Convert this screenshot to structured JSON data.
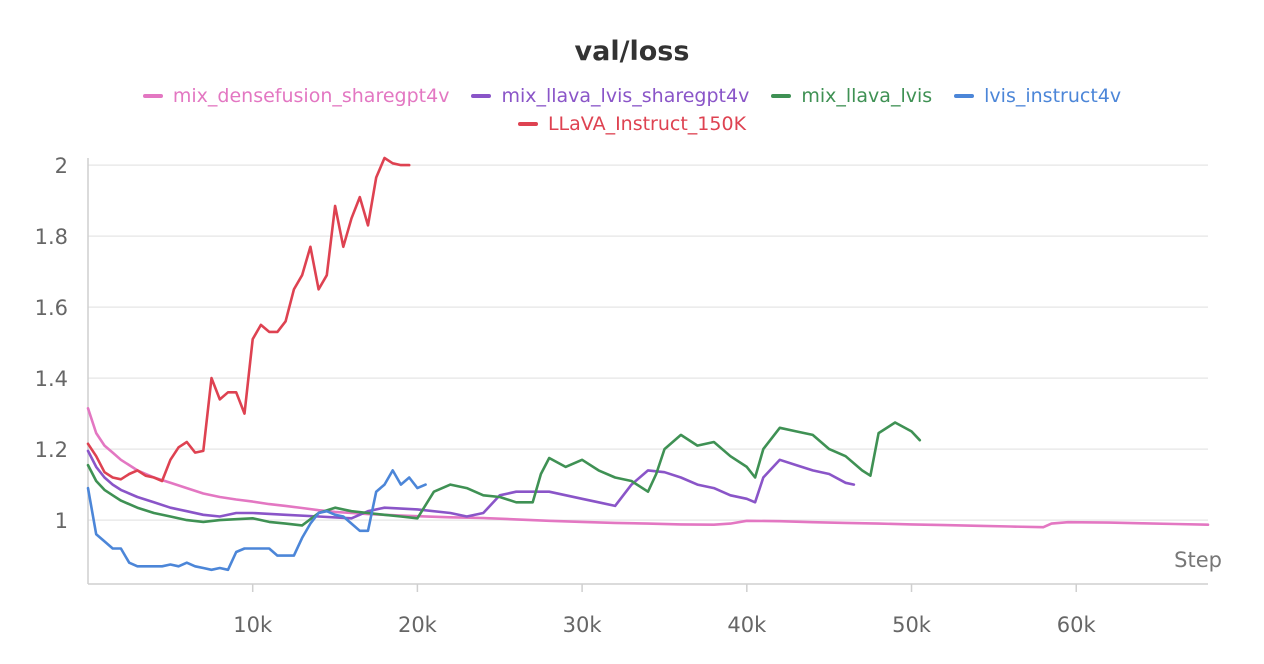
{
  "chart_data": {
    "type": "line",
    "title": "val/loss",
    "xlabel": "Step",
    "ylabel": "",
    "xlim": [
      0,
      68000
    ],
    "ylim": [
      0.82,
      2.02
    ],
    "x_ticks": [
      10000,
      20000,
      30000,
      40000,
      50000,
      60000
    ],
    "x_tick_labels": [
      "10k",
      "20k",
      "30k",
      "40k",
      "50k",
      "60k"
    ],
    "y_ticks": [
      1.0,
      1.2,
      1.4,
      1.6,
      1.8,
      2.0
    ],
    "y_tick_labels": [
      "1",
      "1.2",
      "1.4",
      "1.6",
      "1.8",
      "2"
    ],
    "grid": true,
    "legend_position": "top",
    "series": [
      {
        "name": "mix_densefusion_sharegpt4v",
        "color": "#e377c2",
        "x": [
          0,
          500,
          1000,
          1500,
          2000,
          3000,
          4000,
          5000,
          6000,
          7000,
          8000,
          9000,
          10000,
          11000,
          12000,
          13000,
          14000,
          15000,
          16000,
          17000,
          18000,
          19000,
          20000,
          22000,
          24000,
          26000,
          28000,
          30000,
          32000,
          34000,
          36000,
          38000,
          39000,
          40000,
          42000,
          44000,
          46000,
          48000,
          50000,
          52000,
          54000,
          56000,
          58000,
          58500,
          59500,
          62000,
          64000,
          66000,
          68000
        ],
        "values": [
          1.315,
          1.245,
          1.21,
          1.19,
          1.17,
          1.14,
          1.12,
          1.105,
          1.09,
          1.075,
          1.065,
          1.058,
          1.052,
          1.045,
          1.04,
          1.034,
          1.028,
          1.023,
          1.02,
          1.017,
          1.015,
          1.013,
          1.011,
          1.008,
          1.006,
          1.002,
          0.998,
          0.995,
          0.992,
          0.99,
          0.988,
          0.987,
          0.99,
          0.998,
          0.997,
          0.994,
          0.992,
          0.99,
          0.988,
          0.986,
          0.984,
          0.982,
          0.98,
          0.99,
          0.994,
          0.993,
          0.991,
          0.989,
          0.987
        ]
      },
      {
        "name": "mix_llava_lvis_sharegpt4v",
        "color": "#8a55c8",
        "x": [
          0,
          500,
          1000,
          1500,
          2000,
          3000,
          4000,
          5000,
          6000,
          7000,
          8000,
          9000,
          10000,
          12000,
          14000,
          16000,
          17000,
          18000,
          20000,
          22000,
          23000,
          24000,
          25000,
          26000,
          28000,
          30000,
          31000,
          32000,
          33000,
          34000,
          35000,
          36000,
          37000,
          38000,
          39000,
          40000,
          40500,
          41000,
          42000,
          43000,
          44000,
          45000,
          46000,
          46500
        ],
        "values": [
          1.195,
          1.15,
          1.12,
          1.1,
          1.085,
          1.065,
          1.05,
          1.035,
          1.025,
          1.015,
          1.01,
          1.02,
          1.02,
          1.015,
          1.01,
          1.005,
          1.025,
          1.035,
          1.03,
          1.02,
          1.01,
          1.02,
          1.07,
          1.08,
          1.08,
          1.06,
          1.05,
          1.04,
          1.1,
          1.14,
          1.135,
          1.12,
          1.1,
          1.09,
          1.07,
          1.06,
          1.05,
          1.12,
          1.17,
          1.155,
          1.14,
          1.13,
          1.105,
          1.1
        ]
      },
      {
        "name": "mix_llava_lvis",
        "color": "#3f9154",
        "x": [
          0,
          500,
          1000,
          1500,
          2000,
          3000,
          4000,
          5000,
          6000,
          7000,
          8000,
          10000,
          11000,
          12000,
          13000,
          14000,
          15000,
          16000,
          17000,
          18000,
          19000,
          20000,
          21000,
          22000,
          23000,
          24000,
          25000,
          26000,
          27000,
          27500,
          28000,
          29000,
          30000,
          31000,
          32000,
          33000,
          34000,
          34500,
          35000,
          36000,
          37000,
          38000,
          39000,
          40000,
          40500,
          41000,
          42000,
          43000,
          44000,
          45000,
          46000,
          47000,
          47500,
          48000,
          49000,
          50000,
          50500
        ],
        "values": [
          1.155,
          1.11,
          1.085,
          1.07,
          1.055,
          1.035,
          1.02,
          1.01,
          1.0,
          0.995,
          1.0,
          1.005,
          0.995,
          0.99,
          0.985,
          1.02,
          1.035,
          1.025,
          1.02,
          1.015,
          1.01,
          1.005,
          1.08,
          1.1,
          1.09,
          1.07,
          1.065,
          1.05,
          1.05,
          1.13,
          1.175,
          1.15,
          1.17,
          1.14,
          1.12,
          1.11,
          1.08,
          1.13,
          1.2,
          1.24,
          1.21,
          1.22,
          1.18,
          1.15,
          1.12,
          1.2,
          1.26,
          1.25,
          1.24,
          1.2,
          1.18,
          1.14,
          1.125,
          1.245,
          1.275,
          1.25,
          1.225
        ]
      },
      {
        "name": "lvis_instruct4v",
        "color": "#4c86d8",
        "x": [
          0,
          500,
          1000,
          1500,
          2000,
          2500,
          3000,
          3500,
          4000,
          4500,
          5000,
          5500,
          6000,
          6500,
          7000,
          7500,
          8000,
          8500,
          9000,
          9500,
          10000,
          10500,
          11000,
          11500,
          12000,
          12500,
          13000,
          13500,
          14000,
          14500,
          15000,
          15500,
          16000,
          16500,
          17000,
          17500,
          18000,
          18500,
          19000,
          19500,
          20000,
          20500
        ],
        "values": [
          1.09,
          0.96,
          0.94,
          0.92,
          0.92,
          0.88,
          0.87,
          0.87,
          0.87,
          0.87,
          0.875,
          0.87,
          0.88,
          0.87,
          0.865,
          0.86,
          0.865,
          0.86,
          0.91,
          0.92,
          0.92,
          0.92,
          0.92,
          0.9,
          0.9,
          0.9,
          0.95,
          0.99,
          1.02,
          1.025,
          1.015,
          1.01,
          0.99,
          0.97,
          0.97,
          1.08,
          1.1,
          1.14,
          1.1,
          1.12,
          1.09,
          1.1
        ]
      },
      {
        "name": "LLaVA_Instruct_150K",
        "color": "#de4251",
        "x": [
          0,
          500,
          1000,
          1500,
          2000,
          2500,
          3000,
          3500,
          4000,
          4500,
          5000,
          5500,
          6000,
          6500,
          7000,
          7500,
          8000,
          8500,
          9000,
          9500,
          10000,
          10500,
          11000,
          11500,
          12000,
          12500,
          13000,
          13500,
          14000,
          14500,
          15000,
          15500,
          16000,
          16500,
          17000,
          17500,
          18000,
          18500,
          19000,
          19500
        ],
        "values": [
          1.215,
          1.18,
          1.135,
          1.12,
          1.115,
          1.13,
          1.14,
          1.125,
          1.12,
          1.11,
          1.17,
          1.205,
          1.22,
          1.19,
          1.195,
          1.4,
          1.34,
          1.36,
          1.36,
          1.3,
          1.51,
          1.55,
          1.53,
          1.53,
          1.56,
          1.65,
          1.69,
          1.77,
          1.65,
          1.69,
          1.885,
          1.77,
          1.85,
          1.91,
          1.83,
          1.965,
          2.02,
          2.005,
          2.0,
          2.0
        ]
      }
    ]
  }
}
